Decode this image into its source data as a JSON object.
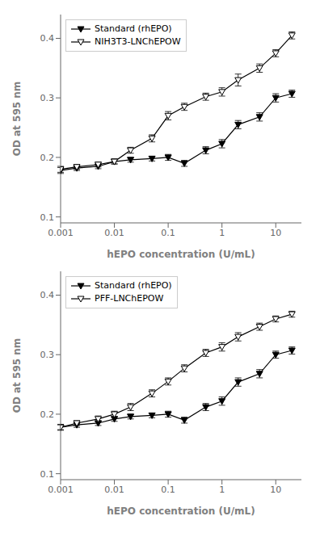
{
  "chart_data": [
    {
      "type": "line",
      "xlabel": "hEPO concentration (U/mL)",
      "ylabel": "OD at 595 nm",
      "x": [
        0.001,
        0.002,
        0.005,
        0.01,
        0.02,
        0.05,
        0.1,
        0.2,
        0.5,
        1,
        2,
        5,
        10,
        20
      ],
      "xlim": [
        0.001,
        30
      ],
      "xticks": [
        0.001,
        0.01,
        0.1,
        1,
        10
      ],
      "ylim": [
        0.09,
        0.44
      ],
      "yticks": [
        0.1,
        0.2,
        0.3,
        0.4
      ],
      "log": "x",
      "grid": false,
      "legend": "upper left",
      "series": [
        {
          "name": "Standard (rhEPO)",
          "color": "#000000",
          "marker": "filled_triangle_down",
          "line_style": "solid",
          "values": [
            0.178,
            0.182,
            0.185,
            0.193,
            0.196,
            0.198,
            0.2,
            0.19,
            0.212,
            0.223,
            0.255,
            0.268,
            0.3,
            0.307
          ],
          "yerr": [
            0.005,
            0.004,
            0.004,
            0.004,
            0.004,
            0.004,
            0.005,
            0.005,
            0.006,
            0.007,
            0.007,
            0.007,
            0.007,
            0.006
          ]
        },
        {
          "name": "NIH3T3-LNChEPOW",
          "color": "#000000",
          "marker": "open_triangle_down",
          "line_style": "solid",
          "values": [
            0.18,
            0.184,
            0.188,
            0.193,
            0.212,
            0.232,
            0.27,
            0.285,
            0.302,
            0.31,
            0.33,
            0.35,
            0.375,
            0.405
          ],
          "yerr": [
            0.005,
            0.004,
            0.004,
            0.004,
            0.005,
            0.006,
            0.007,
            0.006,
            0.006,
            0.007,
            0.01,
            0.007,
            0.006,
            0.006
          ]
        }
      ]
    },
    {
      "type": "line",
      "xlabel": "hEPO concentration (U/mL)",
      "ylabel": "OD at 595 nm",
      "x": [
        0.001,
        0.002,
        0.005,
        0.01,
        0.02,
        0.05,
        0.1,
        0.2,
        0.5,
        1,
        2,
        5,
        10,
        20
      ],
      "xlim": [
        0.001,
        30
      ],
      "xticks": [
        0.001,
        0.01,
        0.1,
        1,
        10
      ],
      "ylim": [
        0.09,
        0.44
      ],
      "yticks": [
        0.1,
        0.2,
        0.3,
        0.4
      ],
      "log": "x",
      "grid": false,
      "legend": "upper left",
      "series": [
        {
          "name": "Standard (rhEPO)",
          "color": "#000000",
          "marker": "filled_triangle_down",
          "line_style": "solid",
          "values": [
            0.178,
            0.182,
            0.185,
            0.192,
            0.196,
            0.198,
            0.2,
            0.19,
            0.212,
            0.222,
            0.254,
            0.268,
            0.3,
            0.307
          ],
          "yerr": [
            0.005,
            0.004,
            0.004,
            0.004,
            0.004,
            0.004,
            0.005,
            0.005,
            0.006,
            0.007,
            0.007,
            0.007,
            0.006,
            0.006
          ]
        },
        {
          "name": "PFF-LNChEPOW",
          "color": "#000000",
          "marker": "open_triangle_down",
          "line_style": "solid",
          "values": [
            0.178,
            0.185,
            0.192,
            0.2,
            0.212,
            0.235,
            0.255,
            0.277,
            0.303,
            0.313,
            0.33,
            0.347,
            0.36,
            0.368
          ],
          "yerr": [
            0.004,
            0.004,
            0.005,
            0.005,
            0.006,
            0.006,
            0.006,
            0.006,
            0.006,
            0.007,
            0.007,
            0.006,
            0.005,
            0.005
          ]
        }
      ]
    }
  ]
}
